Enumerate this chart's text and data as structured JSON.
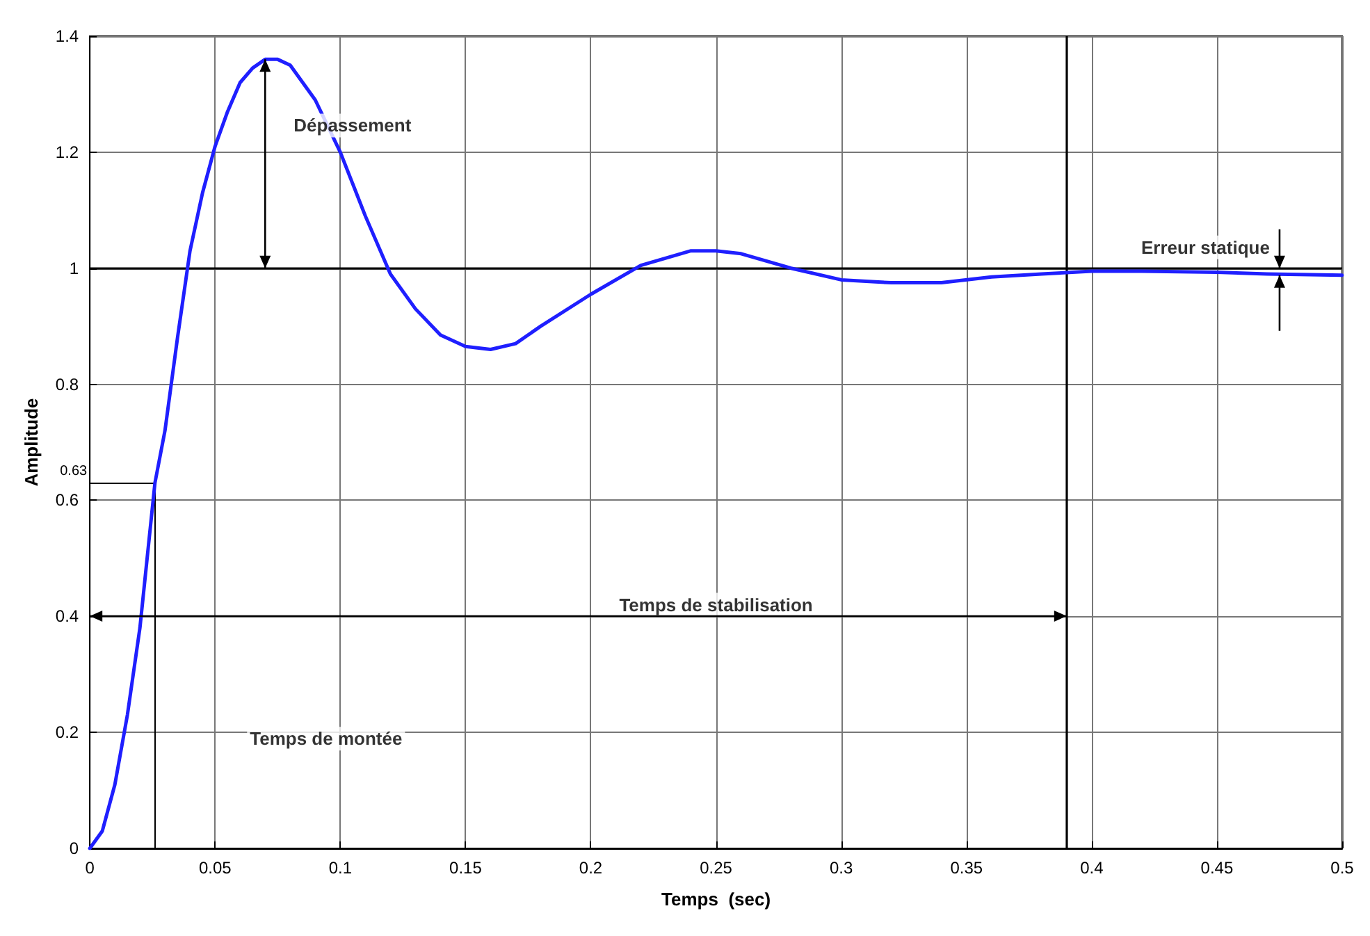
{
  "chart_data": {
    "type": "line",
    "xlabel": "Temps  (sec)",
    "ylabel": "Amplitude",
    "xlim": [
      0,
      0.5
    ],
    "ylim": [
      0,
      1.4
    ],
    "xticks": [
      0,
      0.05,
      0.1,
      0.15,
      0.2,
      0.25,
      0.3,
      0.35,
      0.4,
      0.45,
      0.5
    ],
    "yticks": [
      0,
      0.2,
      0.4,
      0.6,
      0.8,
      1,
      1.2,
      1.4
    ],
    "grid": true,
    "marker": "none",
    "line_style": "solid",
    "series": [
      {
        "color": "#1f1fff",
        "x": [
          0,
          0.005,
          0.01,
          0.015,
          0.02,
          0.026,
          0.03,
          0.035,
          0.04,
          0.045,
          0.05,
          0.055,
          0.06,
          0.065,
          0.07,
          0.075,
          0.08,
          0.09,
          0.1,
          0.11,
          0.12,
          0.13,
          0.14,
          0.15,
          0.16,
          0.17,
          0.18,
          0.2,
          0.22,
          0.24,
          0.25,
          0.26,
          0.28,
          0.3,
          0.32,
          0.34,
          0.36,
          0.38,
          0.4,
          0.42,
          0.45,
          0.47,
          0.5
        ],
        "values": [
          0,
          0.03,
          0.11,
          0.23,
          0.38,
          0.63,
          0.72,
          0.88,
          1.03,
          1.13,
          1.21,
          1.27,
          1.32,
          1.345,
          1.36,
          1.36,
          1.35,
          1.29,
          1.2,
          1.09,
          0.99,
          0.93,
          0.885,
          0.865,
          0.86,
          0.87,
          0.9,
          0.955,
          1.005,
          1.03,
          1.03,
          1.025,
          1.0,
          0.98,
          0.975,
          0.975,
          0.985,
          0.99,
          0.995,
          0.995,
          0.993,
          0.99,
          0.988
        ]
      }
    ],
    "ref_lines": [
      {
        "axis": "y",
        "value": 1,
        "color": "#000000"
      },
      {
        "axis": "y",
        "value": 0.63,
        "label": "0.63",
        "color": "#000000"
      },
      {
        "axis": "x",
        "value": 0.026,
        "color": "#000000"
      },
      {
        "axis": "x",
        "value": 0.39,
        "color": "#000000"
      }
    ],
    "annotations": [
      "Dépassement",
      "Temps de stabilisation",
      "Erreur statique",
      "Temps de montée"
    ]
  }
}
